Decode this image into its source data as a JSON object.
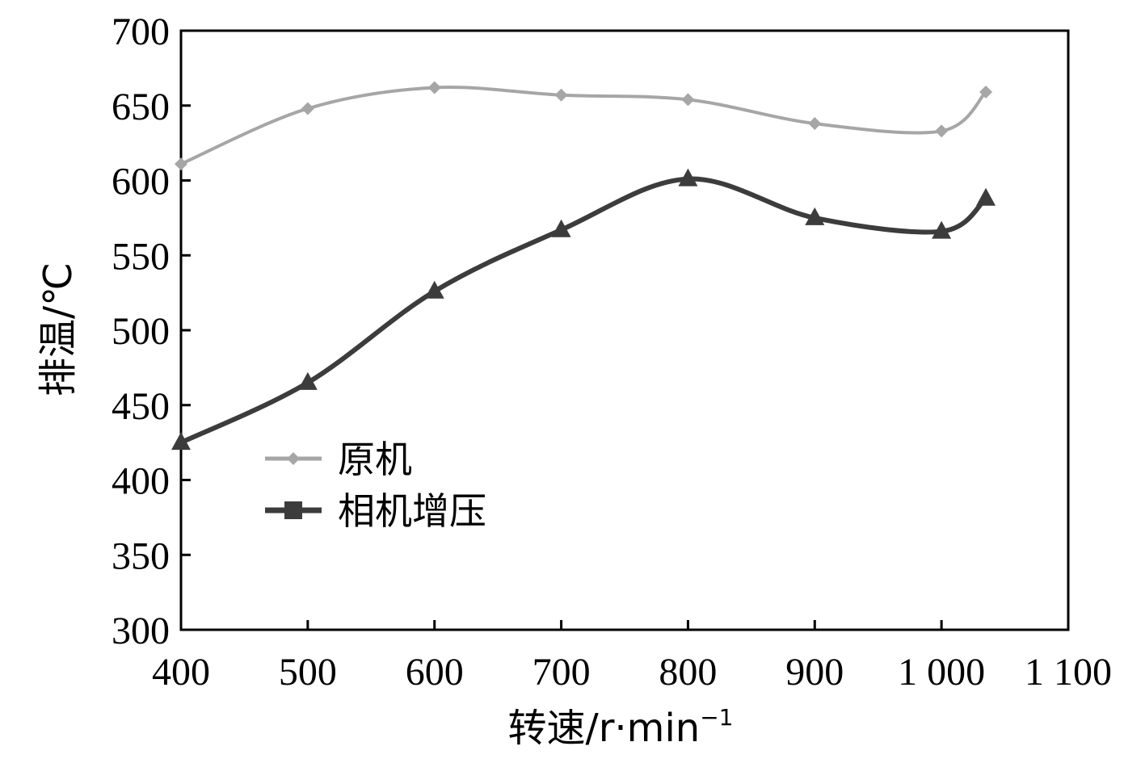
{
  "chart_data": {
    "type": "line",
    "xlabel_main": "转速/r·min",
    "xlabel_sup": "−1",
    "ylabel": "排温/℃",
    "xlim": [
      400,
      1100
    ],
    "ylim": [
      300,
      700
    ],
    "xticks": [
      {
        "value": 400,
        "label": "400"
      },
      {
        "value": 500,
        "label": "500"
      },
      {
        "value": 600,
        "label": "600"
      },
      {
        "value": 700,
        "label": "700"
      },
      {
        "value": 800,
        "label": "800"
      },
      {
        "value": 900,
        "label": "900"
      },
      {
        "value": 1000,
        "label": "1 000"
      },
      {
        "value": 1100,
        "label": "1 100"
      }
    ],
    "yticks": [
      {
        "value": 300,
        "label": "300"
      },
      {
        "value": 350,
        "label": "350"
      },
      {
        "value": 400,
        "label": "400"
      },
      {
        "value": 450,
        "label": "450"
      },
      {
        "value": 500,
        "label": "500"
      },
      {
        "value": 550,
        "label": "550"
      },
      {
        "value": 600,
        "label": "600"
      },
      {
        "value": 650,
        "label": "650"
      },
      {
        "value": 700,
        "label": "700"
      }
    ],
    "legend_position": "center-left",
    "grid": false,
    "series": [
      {
        "name": "原机",
        "color": "#a6a6a6",
        "marker": "diamond",
        "x": [
          400,
          500,
          600,
          700,
          800,
          900,
          1000,
          1035
        ],
        "y": [
          611,
          648,
          662,
          657,
          654,
          638,
          633,
          659
        ]
      },
      {
        "name": "相机增压",
        "color": "#3c3c3c",
        "marker": "triangle",
        "legend_marker": "square",
        "x": [
          400,
          500,
          600,
          700,
          800,
          900,
          1000,
          1035
        ],
        "y": [
          425,
          465,
          526,
          567,
          601,
          575,
          566,
          588
        ]
      }
    ]
  }
}
